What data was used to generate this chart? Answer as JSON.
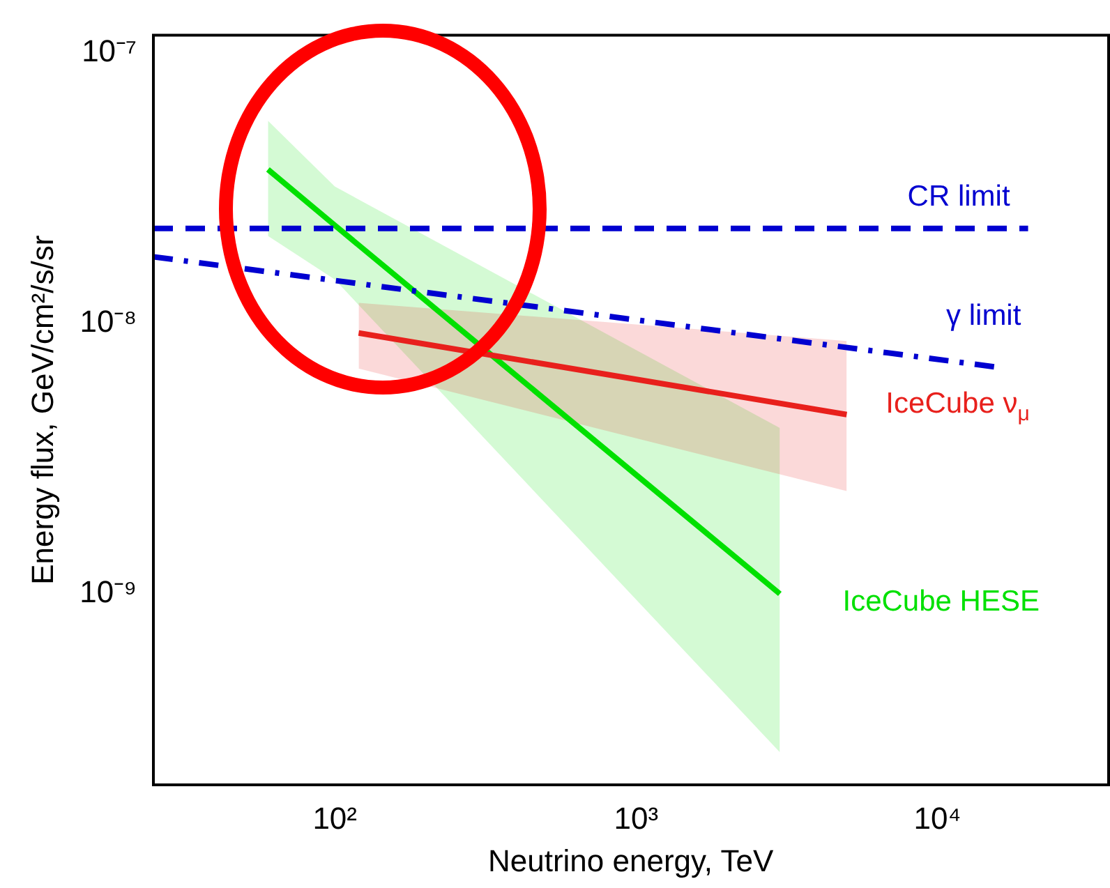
{
  "chart_data": {
    "type": "line",
    "xlabel": "Neutrino energy, TeV",
    "ylabel": "Energy flux, GeV/cm²/s/sr",
    "log": "xy",
    "grid": false,
    "legend": false,
    "marker": "none",
    "xlim": [
      25,
      37000
    ],
    "ylim": [
      1.97e-10,
      1.16e-07
    ],
    "xticks": [
      {
        "value": 100,
        "label": "10²"
      },
      {
        "value": 1000,
        "label": "10³"
      },
      {
        "value": 10000,
        "label": "10⁴"
      }
    ],
    "yticks": [
      {
        "value": 1e-09,
        "label": "10⁻⁹"
      },
      {
        "value": 1e-08,
        "label": "10⁻⁸"
      },
      {
        "value": 1e-07,
        "label": "10⁻⁷"
      }
    ],
    "series": [
      {
        "name": "CR limit",
        "color": "#0000d0",
        "line_style": "dashed",
        "x": [
          25,
          20000
        ],
        "values": [
          2.24e-08,
          2.24e-08
        ]
      },
      {
        "name": "γ limit",
        "color": "#0000d0",
        "line_style": "dashdot",
        "x": [
          25,
          15500
        ],
        "values": [
          1.76e-08,
          6.9e-09
        ]
      },
      {
        "name": "IceCube ν$_{μ}$",
        "color": "#e8201c",
        "line_style": "solid",
        "x": [
          120,
          5000
        ],
        "values": [
          9.2e-09,
          4.6e-09
        ],
        "lower": [
          6.8e-09,
          2.4e-09
        ],
        "upper": [
          1.19e-08,
          8.6e-09
        ]
      },
      {
        "name": "IceCube HESE",
        "color": "#00e000",
        "line_style": "solid",
        "x": [
          60,
          100,
          3000
        ],
        "values": [
          3.7e-08,
          2.3e-08,
          1e-09
        ],
        "lower": [
          2.1e-08,
          1.45e-08,
          2.6e-10
        ],
        "upper": [
          5.6e-08,
          3.2e-08,
          4.1e-09
        ]
      }
    ]
  }
}
